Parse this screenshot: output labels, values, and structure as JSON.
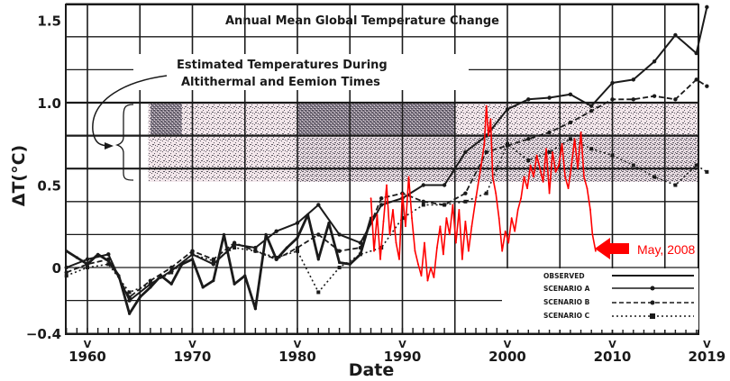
{
  "chart_data": {
    "type": "line",
    "title": "Annual Mean Global Temperature Change",
    "xlabel": "Date",
    "ylabel": "ΔT(°C)",
    "xlim": [
      1958,
      2019.5
    ],
    "ylim": [
      -0.4,
      1.6
    ],
    "grid": true,
    "x_ticks": [
      1960,
      1970,
      1980,
      1990,
      2000,
      2010,
      2019
    ],
    "x_tick_labels": [
      "1960",
      "1970",
      "1980",
      "1990",
      "2000",
      "2010",
      "2019"
    ],
    "y_ticks": [
      -0.4,
      0,
      0.5,
      1.0,
      1.5
    ],
    "y_tick_labels": [
      "−0.4",
      "0",
      "0.5",
      "1.0",
      "1.5"
    ],
    "shaded_band": {
      "label_line1": "Estimated Temperatures During",
      "label_line2": "Altithermal and Eemion Times",
      "y_range": [
        0.52,
        1.0
      ],
      "darker_range": [
        0.8,
        1.0
      ]
    },
    "annotation": {
      "text": "May, 2008",
      "x": 2008.4,
      "y": 0.1,
      "color": "#ff0000"
    },
    "legend": {
      "placement": "bottom-right",
      "entries": [
        "OBSERVED",
        "SCENARIO A",
        "SCENARIO B",
        "SCENARIO C"
      ]
    },
    "series": [
      {
        "name": "OBSERVED",
        "color": "#1a1a1a",
        "style": "solid-thick",
        "x": [
          1958,
          1959,
          1960,
          1961,
          1962,
          1963,
          1964,
          1965,
          1966,
          1967,
          1968,
          1969,
          1970,
          1971,
          1972,
          1973,
          1974,
          1975,
          1976,
          1977,
          1978,
          1979,
          1980,
          1981,
          1982,
          1983,
          1984,
          1985,
          1986,
          1987
        ],
        "y": [
          0.1,
          0.06,
          0.02,
          0.08,
          0.04,
          -0.05,
          -0.28,
          -0.18,
          -0.12,
          -0.05,
          -0.1,
          0.02,
          0.05,
          -0.12,
          -0.08,
          0.2,
          -0.1,
          -0.05,
          -0.25,
          0.2,
          0.05,
          0.12,
          0.18,
          0.32,
          0.05,
          0.27,
          0.03,
          0.02,
          0.08,
          0.3
        ]
      },
      {
        "name": "SCENARIO A",
        "color": "#1a1a1a",
        "style": "solid",
        "x": [
          1958,
          1960,
          1962,
          1964,
          1966,
          1968,
          1970,
          1972,
          1974,
          1976,
          1978,
          1980,
          1982,
          1984,
          1986,
          1988,
          1990,
          1992,
          1994,
          1996,
          1998,
          2000,
          2002,
          2004,
          2006,
          2008,
          2010,
          2012,
          2014,
          2016,
          2018,
          2019
        ],
        "y": [
          0.0,
          0.05,
          0.08,
          -0.2,
          -0.1,
          -0.02,
          0.08,
          0.02,
          0.14,
          0.12,
          0.22,
          0.27,
          0.38,
          0.2,
          0.15,
          0.38,
          0.42,
          0.5,
          0.5,
          0.7,
          0.8,
          0.96,
          1.02,
          1.03,
          1.05,
          0.98,
          1.12,
          1.14,
          1.25,
          1.41,
          1.3,
          1.58
        ]
      },
      {
        "name": "SCENARIO B",
        "color": "#1a1a1a",
        "style": "dashed",
        "x": [
          1958,
          1960,
          1962,
          1964,
          1966,
          1968,
          1970,
          1972,
          1974,
          1976,
          1978,
          1980,
          1982,
          1984,
          1986,
          1988,
          1990,
          1992,
          1994,
          1996,
          1998,
          2000,
          2002,
          2004,
          2006,
          2008,
          2010,
          2012,
          2014,
          2016,
          2018,
          2019
        ],
        "y": [
          -0.03,
          0.02,
          0.05,
          -0.18,
          -0.08,
          0.0,
          0.1,
          0.05,
          0.15,
          0.1,
          0.05,
          0.12,
          0.2,
          0.1,
          0.12,
          0.42,
          0.45,
          0.4,
          0.38,
          0.45,
          0.7,
          0.74,
          0.78,
          0.82,
          0.88,
          0.95,
          1.02,
          1.02,
          1.04,
          1.02,
          1.14,
          1.1
        ]
      },
      {
        "name": "SCENARIO C",
        "color": "#1a1a1a",
        "style": "dotted",
        "x": [
          1958,
          1960,
          1962,
          1964,
          1966,
          1968,
          1970,
          1972,
          1974,
          1976,
          1978,
          1980,
          1982,
          1984,
          1986,
          1988,
          1990,
          1992,
          1994,
          1996,
          1998,
          2000,
          2002,
          2004,
          2006,
          2008,
          2010,
          2012,
          2014,
          2016,
          2018,
          2019
        ],
        "y": [
          -0.05,
          0.0,
          0.02,
          -0.15,
          -0.1,
          -0.03,
          0.08,
          0.04,
          0.12,
          0.1,
          0.06,
          0.1,
          -0.15,
          0.0,
          0.08,
          0.12,
          0.3,
          0.38,
          0.38,
          0.4,
          0.45,
          0.75,
          0.65,
          0.7,
          0.78,
          0.72,
          0.68,
          0.62,
          0.55,
          0.5,
          0.62,
          0.58
        ]
      },
      {
        "name": "Observed monthly (to May 2008)",
        "color": "#ff0000",
        "style": "solid",
        "x": [
          1987.0,
          1987.3,
          1987.6,
          1987.9,
          1988.2,
          1988.5,
          1988.8,
          1989.1,
          1989.4,
          1989.7,
          1990.0,
          1990.3,
          1990.6,
          1990.9,
          1991.2,
          1991.5,
          1991.8,
          1992.1,
          1992.4,
          1992.7,
          1993.0,
          1993.3,
          1993.6,
          1993.9,
          1994.2,
          1994.5,
          1994.8,
          1995.1,
          1995.4,
          1995.7,
          1996.0,
          1996.3,
          1996.6,
          1996.9,
          1997.2,
          1997.5,
          1997.8,
          1998.0,
          1998.2,
          1998.4,
          1998.6,
          1998.9,
          1999.2,
          1999.5,
          1999.8,
          2000.1,
          2000.4,
          2000.7,
          2001.0,
          2001.3,
          2001.6,
          2001.9,
          2002.2,
          2002.5,
          2002.8,
          2003.1,
          2003.4,
          2003.7,
          2004.0,
          2004.3,
          2004.6,
          2004.9,
          2005.2,
          2005.5,
          2005.8,
          2006.1,
          2006.4,
          2006.7,
          2007.0,
          2007.3,
          2007.6,
          2007.9,
          2008.1,
          2008.4
        ],
        "y": [
          0.42,
          0.1,
          0.32,
          0.05,
          0.28,
          0.5,
          0.2,
          0.35,
          0.15,
          0.05,
          0.45,
          0.25,
          0.55,
          0.3,
          0.1,
          0.02,
          -0.05,
          0.15,
          -0.08,
          0.0,
          -0.06,
          0.12,
          0.25,
          0.08,
          0.3,
          0.2,
          0.38,
          0.15,
          0.35,
          0.05,
          0.28,
          0.1,
          0.25,
          0.38,
          0.5,
          0.62,
          0.75,
          0.98,
          0.8,
          0.9,
          0.55,
          0.45,
          0.3,
          0.1,
          0.22,
          0.15,
          0.3,
          0.22,
          0.35,
          0.42,
          0.55,
          0.48,
          0.62,
          0.55,
          0.68,
          0.6,
          0.52,
          0.72,
          0.45,
          0.7,
          0.58,
          0.62,
          0.75,
          0.55,
          0.48,
          0.62,
          0.78,
          0.6,
          0.82,
          0.55,
          0.48,
          0.35,
          0.2,
          0.1
        ]
      }
    ]
  }
}
